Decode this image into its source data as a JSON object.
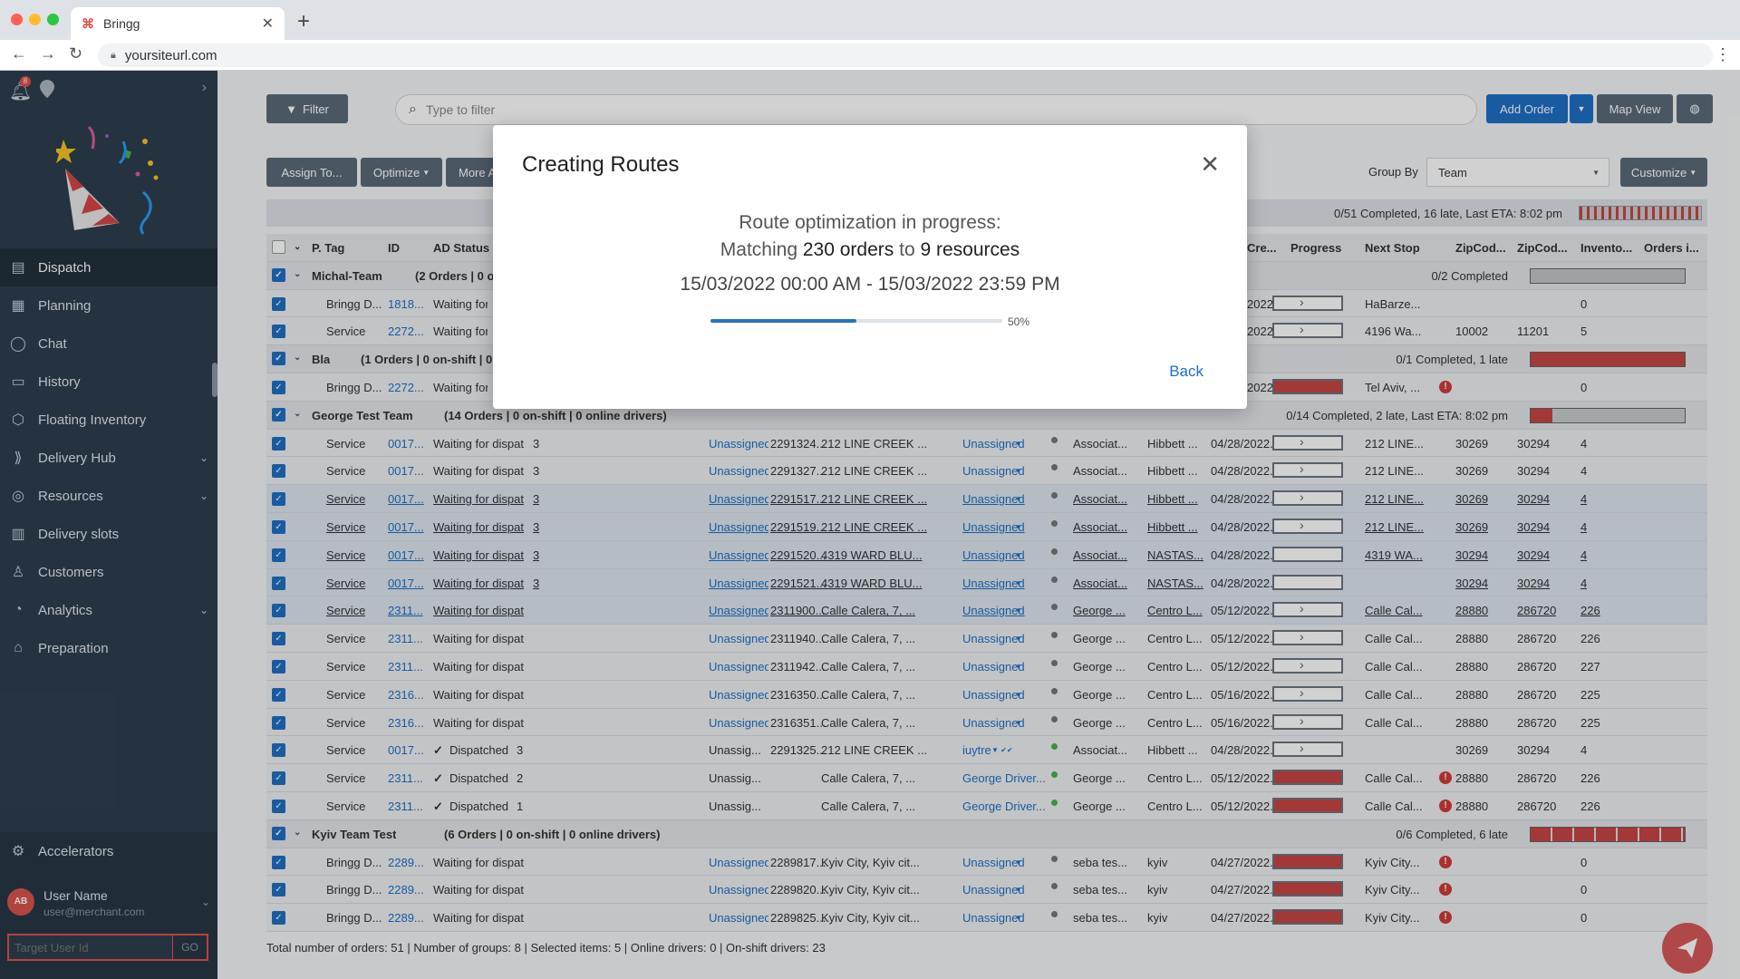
{
  "browser": {
    "tab_title": "Bringg",
    "url": "yoursiteurl.com"
  },
  "sidebar": {
    "notif_count": "8",
    "items": [
      {
        "label": "Dispatch",
        "icon": "dispatch-icon"
      },
      {
        "label": "Planning",
        "icon": "calendar-icon"
      },
      {
        "label": "Chat",
        "icon": "chat-icon"
      },
      {
        "label": "History",
        "icon": "history-icon"
      },
      {
        "label": "Floating Inventory",
        "icon": "box-icon"
      },
      {
        "label": "Delivery Hub",
        "icon": "truck-icon",
        "chevron": true
      },
      {
        "label": "Resources",
        "icon": "resources-icon",
        "chevron": true
      },
      {
        "label": "Delivery slots",
        "icon": "slots-icon"
      },
      {
        "label": "Customers",
        "icon": "customers-icon"
      },
      {
        "label": "Analytics",
        "icon": "analytics-icon",
        "chevron": true
      },
      {
        "label": "Preparation",
        "icon": "preparation-icon"
      }
    ],
    "accelerators": "Accelerators",
    "user": {
      "initials": "AB",
      "name": "User Name",
      "email": "user@merchant.com"
    },
    "target_placeholder": "Target User Id",
    "go_label": "GO"
  },
  "toolbar": {
    "filter": "Filter",
    "search_placeholder": "Type to filter",
    "add_order": "Add Order",
    "map_view": "Map View",
    "assign": "Assign To...",
    "optimize": "Optimize",
    "more": "More A",
    "group_by_label": "Group By",
    "group_by_value": "Team",
    "customize": "Customize"
  },
  "summary": "0/51 Completed, 16 late, Last ETA: 8:02 pm",
  "columns": {
    "ptag": "P. Tag",
    "id": "ID",
    "ad_status": "AD Status",
    "cre": "Cre...",
    "progress": "Progress",
    "next_stop": "Next Stop",
    "zip1": "ZipCod...",
    "zip2": "ZipCod...",
    "inv": "Invento...",
    "orders": "Orders i..."
  },
  "rows": [
    {
      "kind": "group",
      "name": "Michal-Team",
      "info": "(2 Orders | 0 o",
      "status": "0/2 Completed",
      "bar": "grey"
    },
    {
      "kind": "data",
      "tag": "Bringg D...",
      "id": "1818...",
      "ad": "Waiting for",
      "cre": "2022...",
      "prog": "chev",
      "next": "HaBarze...",
      "inv": "0"
    },
    {
      "kind": "data",
      "tag": "Service",
      "id": "2272...",
      "ad": "Waiting for",
      "cre": "2022...",
      "prog": "chev",
      "next": "4196 Wa...",
      "zip1": "10002",
      "zip2": "11201",
      "inv": "5"
    },
    {
      "kind": "group",
      "name": "Bla",
      "info": "(1 Orders | 0 on-shift | 0 c",
      "status": "0/1 Completed, 1 late",
      "bar": "red"
    },
    {
      "kind": "data",
      "tag": "Bringg D...",
      "id": "2272...",
      "ad": "Waiting for",
      "cre": "2022...",
      "prog": "red",
      "next": "Tel Aviv, ...",
      "alert": true,
      "inv": "0"
    },
    {
      "kind": "group",
      "name": "George Test Team",
      "info": "(14 Orders | 0 on-shift | 0 online drivers)",
      "status": "0/14 Completed, 2 late, Last ETA: 8:02 pm",
      "bar": "mixed"
    },
    {
      "kind": "data",
      "tag": "Service",
      "id": "0017...",
      "ad": "Waiting for dispat",
      "n": "3",
      "un": "Unassigned",
      "oid": "2291324...",
      "addr": "212 LINE CREEK ...",
      "drv": "Unassigned",
      "dot": "grey",
      "acc": "Associat...",
      "st": "Hibbett ...",
      "cre": "04/28/2022...",
      "prog": "chev",
      "next": "212 LINE...",
      "zip1": "30269",
      "zip2": "30294",
      "inv": "4"
    },
    {
      "kind": "data",
      "tag": "Service",
      "id": "0017...",
      "ad": "Waiting for dispat",
      "n": "3",
      "un": "Unassigned",
      "oid": "2291327...",
      "addr": "212 LINE CREEK ...",
      "drv": "Unassigned",
      "dot": "grey",
      "acc": "Associat...",
      "st": "Hibbett ...",
      "cre": "04/28/2022...",
      "prog": "chev",
      "next": "212 LINE...",
      "zip1": "30269",
      "zip2": "30294",
      "inv": "4"
    },
    {
      "kind": "data",
      "ul": true,
      "tag": "Service",
      "id": "0017...",
      "ad": "Waiting for dispat",
      "n": "3",
      "un": "Unassigned",
      "oid": "2291517...",
      "addr": "212 LINE CREEK ...",
      "drv": "Unassigned",
      "dot": "grey",
      "acc": "Associat...",
      "st": "Hibbett ...",
      "cre": "04/28/2022...",
      "prog": "chev",
      "next": "212 LINE...",
      "zip1": "30269",
      "zip2": "30294",
      "inv": "4"
    },
    {
      "kind": "data",
      "ul": true,
      "tag": "Service",
      "id": "0017...",
      "ad": "Waiting for dispat",
      "n": "3",
      "un": "Unassigned",
      "oid": "2291519...",
      "addr": "212 LINE CREEK ...",
      "drv": "Unassigned",
      "dot": "grey",
      "acc": "Associat...",
      "st": "Hibbett ...",
      "cre": "04/28/2022...",
      "prog": "chev",
      "next": "212 LINE...",
      "zip1": "30269",
      "zip2": "30294",
      "inv": "4"
    },
    {
      "kind": "data",
      "ul": true,
      "tag": "Service",
      "id": "0017...",
      "ad": "Waiting for dispat",
      "n": "3",
      "un": "Unassigned",
      "oid": "2291520...",
      "addr": "4319 WARD BLU...",
      "drv": "Unassigned",
      "dot": "grey",
      "acc": "Associat...",
      "st": "NASTAS...",
      "cre": "04/28/2022...",
      "prog": "empty",
      "next": "4319 WA...",
      "zip1": "30294",
      "zip2": "30294",
      "inv": "4"
    },
    {
      "kind": "data",
      "ul": true,
      "tag": "Service",
      "id": "0017...",
      "ad": "Waiting for dispat",
      "n": "3",
      "un": "Unassigned",
      "oid": "2291521...",
      "addr": "4319 WARD BLU...",
      "drv": "Unassigned",
      "dot": "grey",
      "acc": "Associat...",
      "st": "NASTAS...",
      "cre": "04/28/2022...",
      "prog": "empty",
      "next": "",
      "zip1": "30294",
      "zip2": "30294",
      "inv": "4"
    },
    {
      "kind": "data",
      "ul": true,
      "tag": "Service",
      "id": "2311...",
      "ad": "Waiting for dispat",
      "n": "",
      "un": "Unassigned",
      "oid": "2311900...",
      "addr": "Calle Calera, 7, ...",
      "drv": "Unassigned",
      "dot": "grey",
      "acc": "George ...",
      "st": "Centro L...",
      "cre": "05/12/2022...",
      "prog": "chev",
      "next": "Calle Cal...",
      "zip1": "28880",
      "zip2": "286720",
      "inv": "226"
    },
    {
      "kind": "data",
      "tag": "Service",
      "id": "2311...",
      "ad": "Waiting for dispat",
      "n": "",
      "un": "Unassigned",
      "oid": "2311940...",
      "addr": "Calle Calera, 7, ...",
      "drv": "Unassigned",
      "dot": "grey",
      "acc": "George ...",
      "st": "Centro L...",
      "cre": "05/12/2022...",
      "prog": "chev",
      "next": "Calle Cal...",
      "zip1": "28880",
      "zip2": "286720",
      "inv": "226"
    },
    {
      "kind": "data",
      "tag": "Service",
      "id": "2311...",
      "ad": "Waiting for dispat",
      "n": "",
      "un": "Unassigned",
      "oid": "2311942...",
      "addr": "Calle Calera, 7, ...",
      "drv": "Unassigned",
      "dot": "grey",
      "acc": "George ...",
      "st": "Centro L...",
      "cre": "05/12/2022...",
      "prog": "chev",
      "next": "Calle Cal...",
      "zip1": "28880",
      "zip2": "286720",
      "inv": "227"
    },
    {
      "kind": "data",
      "tag": "Service",
      "id": "2316...",
      "ad": "Waiting for dispat",
      "n": "",
      "un": "Unassigned",
      "oid": "2316350...",
      "addr": "Calle Calera, 7, ...",
      "drv": "Unassigned",
      "dot": "grey",
      "acc": "George ...",
      "st": "Centro L...",
      "cre": "05/16/2022...",
      "prog": "chev",
      "next": "Calle Cal...",
      "zip1": "28880",
      "zip2": "286720",
      "inv": "225"
    },
    {
      "kind": "data",
      "tag": "Service",
      "id": "2316...",
      "ad": "Waiting for dispat",
      "n": "",
      "un": "Unassigned",
      "oid": "2316351...",
      "addr": "Calle Calera, 7, ...",
      "drv": "Unassigned",
      "dot": "grey",
      "acc": "George ...",
      "st": "Centro L...",
      "cre": "05/16/2022...",
      "prog": "chev",
      "next": "Calle Cal...",
      "zip1": "28880",
      "zip2": "286720",
      "inv": "225"
    },
    {
      "kind": "data",
      "tag": "Service",
      "id": "0017...",
      "ad": "Dispatched",
      "check": true,
      "n": "3",
      "un": "Unassig...",
      "unplain": true,
      "oid": "2291325...",
      "addr": "212 LINE CREEK ...",
      "drv": "iuytre",
      "dot": "green",
      "acc": "Associat...",
      "st": "Hibbett ...",
      "cre": "04/28/2022...",
      "prog": "chev",
      "next": "",
      "zip1": "30269",
      "zip2": "30294",
      "inv": "4"
    },
    {
      "kind": "data",
      "tag": "Service",
      "id": "2311...",
      "ad": "Dispatched",
      "check": true,
      "n": "2",
      "un": "Unassig...",
      "unplain": true,
      "oid": "",
      "addr": "Calle Calera, 7, ...",
      "drv": "George Driver...",
      "drvplain": true,
      "dot": "green",
      "acc": "George ...",
      "st": "Centro L...",
      "cre": "05/12/2022...",
      "prog": "red",
      "next": "Calle Cal...",
      "alert": true,
      "zip1": "28880",
      "zip2": "286720",
      "inv": "226"
    },
    {
      "kind": "data",
      "tag": "Service",
      "id": "2311...",
      "ad": "Dispatched",
      "check": true,
      "n": "1",
      "un": "Unassig...",
      "unplain": true,
      "oid": "",
      "addr": "Calle Calera, 7, ...",
      "drv": "George Driver...",
      "drvplain": true,
      "dot": "green",
      "acc": "George ...",
      "st": "Centro L...",
      "cre": "05/12/2022...",
      "prog": "red",
      "next": "Calle Cal...",
      "alert": true,
      "zip1": "28880",
      "zip2": "286720",
      "inv": "226"
    },
    {
      "kind": "group",
      "name": "Kyiv Team Test",
      "info": "(6 Orders | 0 on-shift | 0 online drivers)",
      "status": "0/6 Completed, 6 late",
      "bar": "redseg"
    },
    {
      "kind": "data",
      "tag": "Bringg D...",
      "id": "2289...",
      "ad": "Waiting for dispat",
      "n": "",
      "un": "Unassigned",
      "oid": "2289817...",
      "addr": "Kyiv City, Kyiv cit...",
      "drv": "Unassigned",
      "dot": "grey",
      "acc": "seba tes...",
      "st": "kyiv",
      "cre": "04/27/2022...",
      "prog": "red",
      "next": "Kyiv City...",
      "alert": true,
      "inv": "0"
    },
    {
      "kind": "data",
      "tag": "Bringg D...",
      "id": "2289...",
      "ad": "Waiting for dispat",
      "n": "",
      "un": "Unassigned",
      "oid": "2289820...",
      "addr": "Kyiv City, Kyiv cit...",
      "drv": "Unassigned",
      "dot": "grey",
      "acc": "seba tes...",
      "st": "kyiv",
      "cre": "04/27/2022...",
      "prog": "red",
      "next": "Kyiv City...",
      "alert": true,
      "inv": "0"
    },
    {
      "kind": "data",
      "tag": "Bringg D...",
      "id": "2289...",
      "ad": "Waiting for dispat",
      "n": "",
      "un": "Unassigned",
      "oid": "2289825...",
      "addr": "Kyiv City, Kyiv cit...",
      "drv": "Unassigned",
      "dot": "grey",
      "acc": "seba tes...",
      "st": "kyiv",
      "cre": "04/27/2022...",
      "prog": "red",
      "next": "Kyiv City...",
      "alert": true,
      "inv": "0"
    }
  ],
  "footer": "Total number of orders: 51 | Number of groups: 8 | Selected items: 5 | Online drivers: 0 | On-shift drivers: 23",
  "modal": {
    "title": "Creating Routes",
    "line1": "Route optimization in progress:",
    "matching": "Matching",
    "orders": "230 orders",
    "to": "to",
    "resources": "9 resources",
    "range": "15/03/2022 00:00 AM - 15/03/2022 23:59 PM",
    "progress": 0.5,
    "progress_label": "50%",
    "back": "Back"
  },
  "colors": {
    "accent": "#1f6fc5",
    "sidebar": "#2e3f4f",
    "late": "#c64545"
  }
}
